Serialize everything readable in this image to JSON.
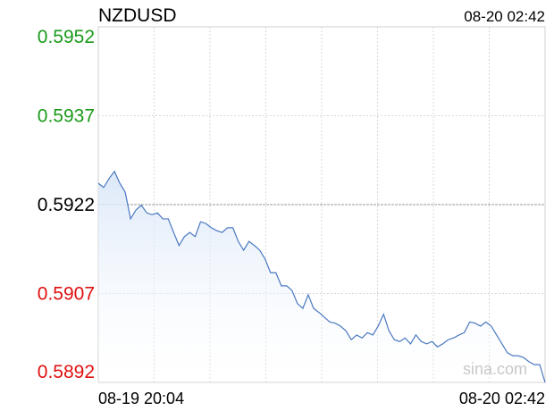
{
  "chart_data": {
    "type": "line",
    "title": "NZDUSD",
    "timestamp": "08-20 02:42",
    "watermark": "sina.com",
    "x_start_label": "08-19 20:04",
    "x_end_label": "08-20 02:42",
    "ylim": [
      0.5892,
      0.5952
    ],
    "yticks": [
      0.5952,
      0.5937,
      0.5922,
      0.5907,
      0.5892
    ],
    "prev_close": 0.5922,
    "up_color": "#1a9a1a",
    "down_color": "#e01010",
    "flat_color": "#000000",
    "color": "#4a78c0",
    "grid": true,
    "values": [
      0.59256,
      0.59249,
      0.59264,
      0.59276,
      0.59256,
      0.59241,
      0.59196,
      0.59211,
      0.59219,
      0.59206,
      0.59203,
      0.59206,
      0.59196,
      0.59196,
      0.59173,
      0.59151,
      0.59166,
      0.59173,
      0.59166,
      0.59191,
      0.59188,
      0.59181,
      0.59176,
      0.59173,
      0.59181,
      0.59181,
      0.59158,
      0.59143,
      0.59158,
      0.59151,
      0.59143,
      0.59128,
      0.59105,
      0.59105,
      0.59083,
      0.59083,
      0.59075,
      0.59053,
      0.59045,
      0.59068,
      0.59045,
      0.59038,
      0.5903,
      0.59022,
      0.5902,
      0.59015,
      0.59007,
      0.58992,
      0.59,
      0.58995,
      0.59004,
      0.59,
      0.59015,
      0.59035,
      0.59007,
      0.58992,
      0.58989,
      0.58995,
      0.58985,
      0.59,
      0.58989,
      0.58985,
      0.58989,
      0.5898,
      0.58985,
      0.58992,
      0.58995,
      0.59,
      0.59004,
      0.59022,
      0.5902,
      0.59015,
      0.59022,
      0.59015,
      0.59,
      0.58985,
      0.5897,
      0.58965,
      0.58965,
      0.58962,
      0.58955,
      0.5895,
      0.5895,
      0.5892
    ]
  }
}
